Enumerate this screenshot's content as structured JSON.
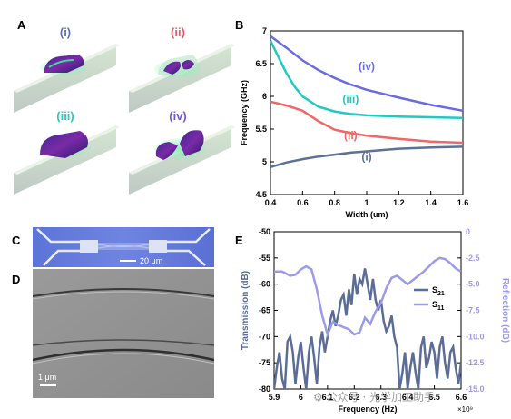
{
  "panels": {
    "a": {
      "label": "A",
      "sublabels": [
        {
          "text": "(i)",
          "color": "#5b6fc4"
        },
        {
          "text": "(ii)",
          "color": "#e85c5c"
        },
        {
          "text": "(iii)",
          "color": "#2cc8c0"
        },
        {
          "text": "(iv)",
          "color": "#6a5ad8"
        }
      ]
    },
    "b": {
      "label": "B"
    },
    "c": {
      "label": "C",
      "scalebar": "20 μm"
    },
    "d": {
      "label": "D",
      "scalebar": "1 μm"
    },
    "e": {
      "label": "E"
    }
  },
  "chart_data": [
    {
      "type": "line",
      "panel": "B",
      "xlabel": "Width (um)",
      "ylabel": "Frequency (GHz)",
      "xlim": [
        0.4,
        1.6
      ],
      "ylim": [
        4.5,
        7
      ],
      "xticks": [
        "0.4",
        "0.6",
        "0.8",
        "1",
        "1.2",
        "1.4",
        "1.6"
      ],
      "yticks": [
        "4.5",
        "5",
        "5.5",
        "6",
        "6.5",
        "7"
      ],
      "series": [
        {
          "name": "(i)",
          "color": "#5d7196",
          "x": [
            0.4,
            0.5,
            0.6,
            0.7,
            0.8,
            0.9,
            1.0,
            1.2,
            1.4,
            1.6
          ],
          "y": [
            4.92,
            4.99,
            5.04,
            5.08,
            5.11,
            5.14,
            5.16,
            5.2,
            5.22,
            5.23
          ]
        },
        {
          "name": "(ii)",
          "color": "#ef6766",
          "x": [
            0.4,
            0.5,
            0.6,
            0.7,
            0.8,
            0.9,
            1.0,
            1.2,
            1.4,
            1.6
          ],
          "y": [
            5.92,
            5.86,
            5.78,
            5.62,
            5.49,
            5.44,
            5.4,
            5.35,
            5.31,
            5.29
          ]
        },
        {
          "name": "(iii)",
          "color": "#22c9c2",
          "x": [
            0.4,
            0.45,
            0.5,
            0.55,
            0.6,
            0.7,
            0.8,
            0.9,
            1.0,
            1.2,
            1.4,
            1.6
          ],
          "y": [
            6.85,
            6.6,
            6.35,
            6.15,
            6.0,
            5.84,
            5.77,
            5.73,
            5.71,
            5.69,
            5.68,
            5.67
          ]
        },
        {
          "name": "(iv)",
          "color": "#6a6be3",
          "x": [
            0.4,
            0.5,
            0.6,
            0.7,
            0.8,
            0.9,
            1.0,
            1.2,
            1.4,
            1.6
          ],
          "y": [
            6.92,
            6.74,
            6.55,
            6.4,
            6.28,
            6.18,
            6.1,
            5.98,
            5.87,
            5.78
          ]
        }
      ]
    },
    {
      "type": "line",
      "panel": "E",
      "xlabel": "Frequency (Hz)",
      "x_multiplier": "×10⁹",
      "ylabel_left": "Transmission (dB)",
      "ylabel_right": "Reflection (dB)",
      "xlim": [
        5.9,
        6.6
      ],
      "ylim_left": [
        -80,
        -50
      ],
      "ylim_right": [
        -15,
        0
      ],
      "xticks": [
        "5.9",
        "6",
        "6.1",
        "6.2",
        "6.3",
        "6.4",
        "6.5",
        "6.6"
      ],
      "yticks_left": [
        "-50",
        "-55",
        "-60",
        "-65",
        "-70",
        "-75",
        "-80"
      ],
      "yticks_right": [
        "0",
        "-2.5",
        "-5.0",
        "-7.5",
        "-10.0",
        "-12.5",
        "-15.0"
      ],
      "series": [
        {
          "name": "S21",
          "axis": "left",
          "color": "#5b6d96",
          "x": [
            5.9,
            5.91,
            5.92,
            5.93,
            5.94,
            5.95,
            5.96,
            5.97,
            5.98,
            5.99,
            6.0,
            6.01,
            6.02,
            6.03,
            6.04,
            6.05,
            6.06,
            6.07,
            6.08,
            6.09,
            6.1,
            6.11,
            6.12,
            6.13,
            6.14,
            6.15,
            6.16,
            6.17,
            6.18,
            6.19,
            6.2,
            6.21,
            6.22,
            6.23,
            6.24,
            6.25,
            6.26,
            6.27,
            6.28,
            6.29,
            6.3,
            6.31,
            6.32,
            6.33,
            6.34,
            6.35,
            6.36,
            6.37,
            6.38,
            6.39,
            6.4,
            6.41,
            6.42,
            6.43,
            6.44,
            6.45,
            6.46,
            6.47,
            6.48,
            6.49,
            6.5,
            6.51,
            6.52,
            6.53,
            6.54,
            6.55,
            6.56,
            6.57,
            6.58,
            6.59,
            6.6
          ],
          "y": [
            -80,
            -76,
            -73,
            -78,
            -80,
            -71,
            -70,
            -73,
            -79,
            -74,
            -71,
            -76,
            -80,
            -73,
            -70,
            -74,
            -79,
            -72,
            -69,
            -73,
            -70,
            -67,
            -65,
            -68,
            -66,
            -63,
            -62,
            -66,
            -61,
            -64,
            -58,
            -62,
            -59,
            -60,
            -57,
            -60,
            -63,
            -59,
            -63,
            -65,
            -63,
            -67,
            -69,
            -68,
            -66,
            -70,
            -72,
            -80,
            -77,
            -73,
            -80,
            -76,
            -73,
            -77,
            -80,
            -72,
            -70,
            -76,
            -74,
            -71,
            -73,
            -78,
            -72,
            -70,
            -75,
            -78,
            -73,
            -72,
            -76,
            -79,
            -75
          ]
        },
        {
          "name": "S11",
          "axis": "right",
          "color": "#9c9be8",
          "x": [
            5.9,
            5.93,
            5.96,
            5.98,
            6.0,
            6.02,
            6.04,
            6.06,
            6.08,
            6.1,
            6.12,
            6.14,
            6.16,
            6.18,
            6.2,
            6.22,
            6.24,
            6.26,
            6.28,
            6.3,
            6.32,
            6.34,
            6.36,
            6.38,
            6.4,
            6.42,
            6.44,
            6.46,
            6.48,
            6.5,
            6.52,
            6.54,
            6.56,
            6.58,
            6.6
          ],
          "y": [
            -3.8,
            -3.8,
            -4.2,
            -4.1,
            -3.6,
            -3.3,
            -3.6,
            -5.5,
            -8.0,
            -9.8,
            -8.6,
            -8.9,
            -9.1,
            -9.3,
            -9.8,
            -9.6,
            -8.2,
            -8.8,
            -7.6,
            -6.8,
            -5.4,
            -4.4,
            -4.2,
            -4.6,
            -5.0,
            -4.6,
            -4.2,
            -3.8,
            -3.3,
            -2.8,
            -2.5,
            -2.6,
            -3.0,
            -3.5,
            -3.8
          ]
        }
      ],
      "legend": "right-middle"
    }
  ]
}
